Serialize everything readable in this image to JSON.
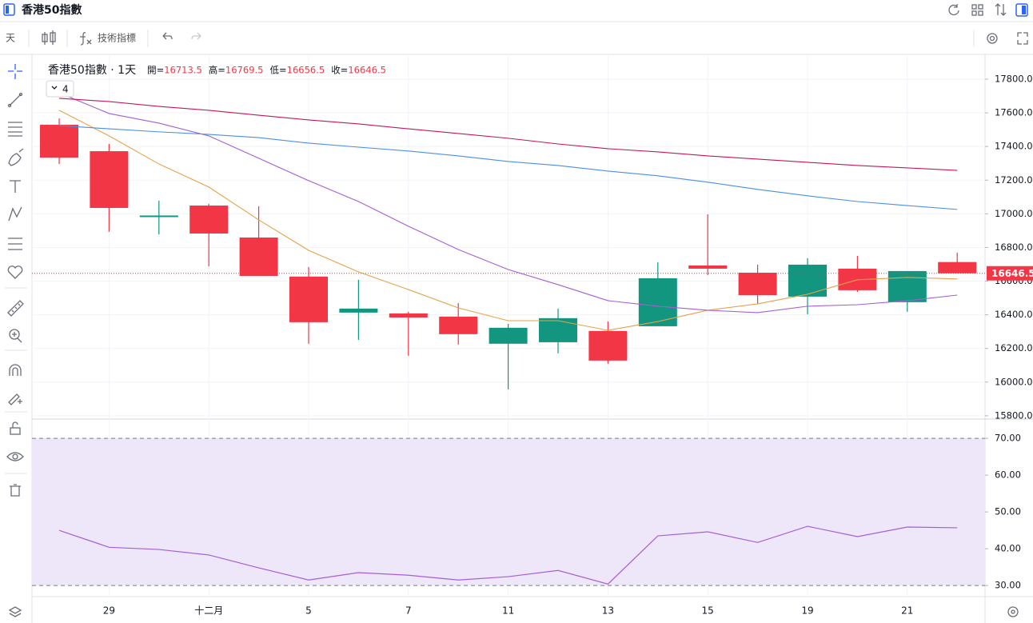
{
  "header": {
    "title": "香港50指數"
  },
  "toolbar": {
    "interval": "天",
    "indicators": "技術指標"
  },
  "chart_data": [
    {
      "type": "candlestick",
      "title": "香港50指數 · 1天",
      "indicator_count": 4,
      "legend_keys": [
        "開=",
        "高=",
        "低=",
        "收="
      ],
      "categories": [
        null,
        "29",
        null,
        "十二月",
        null,
        "5",
        null,
        "7",
        null,
        "11",
        null,
        "13",
        null,
        "15",
        null,
        "19",
        null,
        "21",
        null
      ],
      "open": [
        17529,
        17372,
        16985,
        17049,
        16859,
        16627,
        16413,
        16408,
        16389,
        16228,
        16237,
        16304,
        16332,
        16693,
        16650,
        16508,
        16674,
        16475,
        16713.5
      ],
      "high": [
        17567,
        17415,
        17078,
        17059,
        17045,
        16684,
        16608,
        16418,
        16470,
        16346,
        16437,
        16361,
        16712,
        16997,
        16698,
        16736,
        16750,
        16660,
        16769.5
      ],
      "low": [
        17296,
        16893,
        16878,
        16688,
        16631,
        16228,
        16251,
        16156,
        16223,
        15957,
        16171,
        16109,
        16332,
        16636,
        16465,
        16403,
        16536,
        16418,
        16656.5
      ],
      "close": [
        17334,
        17035,
        16990,
        16883,
        16631,
        16356,
        16437,
        16384,
        16285,
        16323,
        16380,
        16128,
        16617,
        16674,
        16517,
        16698,
        16546,
        16660,
        16646.5
      ],
      "up_color": "#12967f",
      "down_color": "#f23645",
      "lines": [
        {
          "color": "#e5a24b",
          "values": [
            17615,
            17463,
            17296,
            17159,
            16964,
            16783,
            16655,
            16550,
            16441,
            16365,
            16365,
            16308,
            16360,
            16427,
            16465,
            16522,
            16608,
            16622,
            16613
          ]
        },
        {
          "color": "#a45fd6",
          "values": [
            17719,
            17596,
            17539,
            17463,
            17330,
            17197,
            17073,
            16926,
            16788,
            16669,
            16579,
            16484,
            16451,
            16427,
            16413,
            16451,
            16460,
            16484,
            16517
          ]
        },
        {
          "color": "#4a90e2",
          "values": [
            17524,
            17505,
            17487,
            17472,
            17453,
            17420,
            17396,
            17373,
            17344,
            17311,
            17287,
            17254,
            17226,
            17188,
            17145,
            17107,
            17073,
            17049,
            17026
          ]
        },
        {
          "color": "#c2185b",
          "values": [
            17686,
            17667,
            17638,
            17615,
            17586,
            17558,
            17534,
            17505,
            17477,
            17449,
            17415,
            17387,
            17368,
            17344,
            17325,
            17306,
            17287,
            17273,
            17258
          ]
        }
      ],
      "ylim": [
        15790,
        17914
      ],
      "yticks": [
        {
          "value": 15800,
          "label": "15800.00"
        },
        {
          "value": 16000,
          "label": "16000.00"
        },
        {
          "value": 16200,
          "label": "16200.00"
        },
        {
          "value": 16400,
          "label": "16400.00"
        },
        {
          "value": 16600,
          "label": "16600.00"
        },
        {
          "value": 16800,
          "label": "16800.00"
        },
        {
          "value": 17000,
          "label": "17000.00"
        },
        {
          "value": 17200,
          "label": "17200.00"
        },
        {
          "value": 17400,
          "label": "17400.00"
        },
        {
          "value": 17600,
          "label": "17600.00"
        },
        {
          "value": 17800,
          "label": "17800.00"
        }
      ],
      "grid": true
    },
    {
      "type": "line",
      "color": "#a45fd6",
      "values": [
        45.0,
        40.4,
        39.8,
        38.3,
        34.8,
        31.5,
        33.5,
        32.8,
        31.5,
        32.4,
        34.1,
        30.4,
        43.5,
        44.6,
        41.7,
        46.1,
        43.3,
        45.9,
        45.7
      ],
      "band": [
        30,
        70
      ],
      "band_color": "#ede7f9",
      "ylim": [
        27.2,
        74.6
      ],
      "yticks": [
        {
          "value": 30,
          "label": "30.00"
        },
        {
          "value": 40,
          "label": "40.00"
        },
        {
          "value": 50,
          "label": "50.00"
        },
        {
          "value": 60,
          "label": "60.00"
        },
        {
          "value": 70,
          "label": "70.00"
        }
      ],
      "grid": false
    }
  ]
}
